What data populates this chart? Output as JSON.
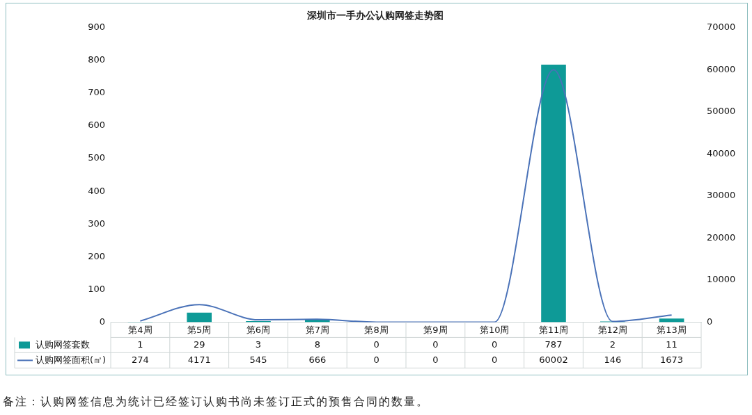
{
  "chart_data": {
    "type": "bar",
    "title": "深圳市一手办公认购网签走势图",
    "categories": [
      "第4周",
      "第5周",
      "第6周",
      "第7周",
      "第8周",
      "第9周",
      "第10周",
      "第11周",
      "第12周",
      "第13周"
    ],
    "series": [
      {
        "name": "认购网签套数",
        "color": "#0e9a97",
        "values": [
          1,
          29,
          3,
          8,
          0,
          0,
          0,
          787,
          2,
          11
        ]
      },
      {
        "name": "认购网签面积(㎡)",
        "type": "line",
        "axis": "y2",
        "color": "#4a72b8",
        "values": [
          274,
          4171,
          545,
          666,
          0,
          0,
          0,
          60002,
          146,
          1673
        ]
      }
    ],
    "ylim": [
      0,
      900
    ],
    "yticks": [
      0,
      100,
      200,
      300,
      400,
      500,
      600,
      700,
      800,
      900
    ],
    "y2lim": [
      0,
      70000
    ],
    "y2ticks": [
      0,
      10000,
      20000,
      30000,
      40000,
      50000,
      60000,
      70000
    ],
    "grid": false,
    "legend": "bottom",
    "data_labels": true,
    "marker": "none",
    "annotations": [
      "备注：认购网签信息为统计已经签订认购书尚未签订正式的预售合同的数量。"
    ]
  }
}
